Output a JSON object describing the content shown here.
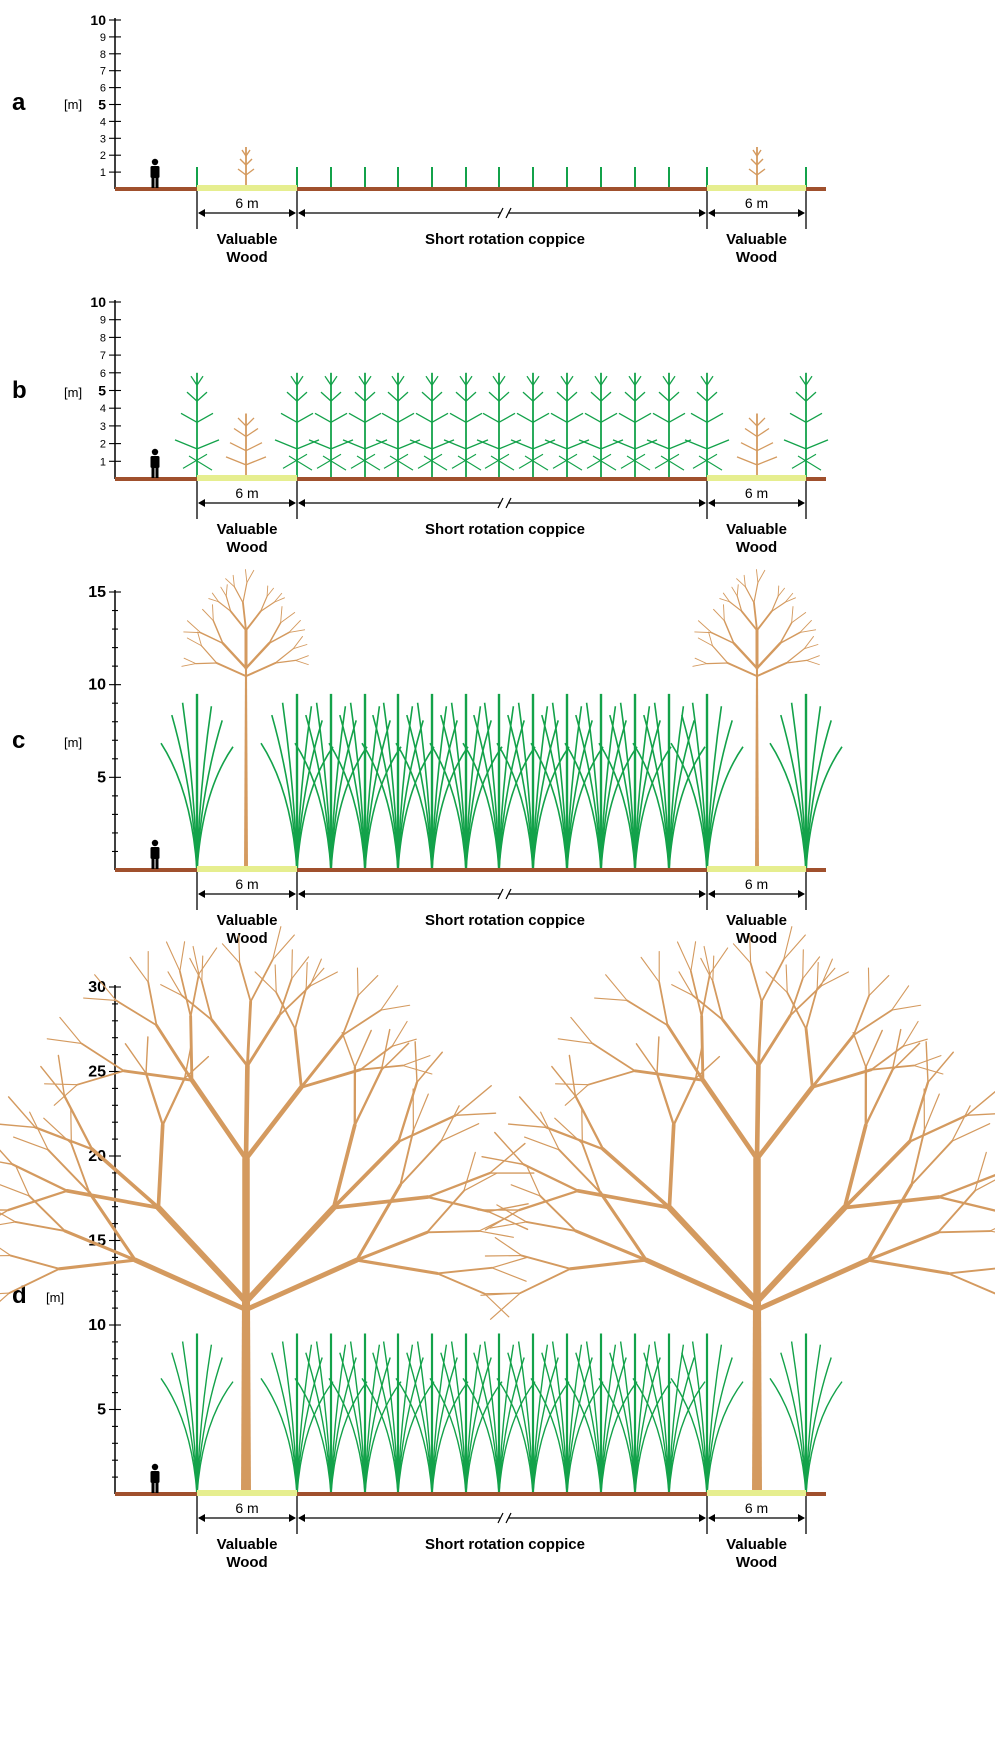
{
  "panels": [
    {
      "letter": "a",
      "unit": "[m]",
      "ticks": [
        "1",
        "2",
        "3",
        "4",
        "5",
        "6",
        "7",
        "8",
        "9",
        "10"
      ],
      "max": 10,
      "stage": "planting",
      "bold_ticks": [
        "5",
        "10"
      ]
    },
    {
      "letter": "b",
      "unit": "[m]",
      "ticks": [
        "1",
        "2",
        "3",
        "4",
        "5",
        "6",
        "7",
        "8",
        "9",
        "10"
      ],
      "max": 10,
      "stage": "young",
      "bold_ticks": [
        "5",
        "10"
      ]
    },
    {
      "letter": "c",
      "unit": "[m]",
      "ticks": [
        "5",
        "10",
        "15"
      ],
      "max": 15,
      "stage": "mid",
      "bold_ticks": [
        "5",
        "10",
        "15"
      ]
    },
    {
      "letter": "d",
      "unit": "[m]",
      "ticks": [
        "5",
        "10",
        "15",
        "20",
        "25",
        "30"
      ],
      "max": 30,
      "stage": "mature",
      "bold_ticks": [
        "5",
        "10",
        "15",
        "20",
        "25",
        "30"
      ]
    }
  ],
  "dimension_label": "6 m",
  "zones": {
    "valuable_line1": "Valuable",
    "valuable_line2": "Wood",
    "coppice": "Short rotation coppice"
  },
  "colors": {
    "ground": "#a0502d",
    "strip": "#e6ee8f",
    "coppice": "#13a24a",
    "valuable_tree": "#d49a5f",
    "ink": "#000000"
  },
  "icons": {
    "person": "person-silhouette-icon"
  }
}
